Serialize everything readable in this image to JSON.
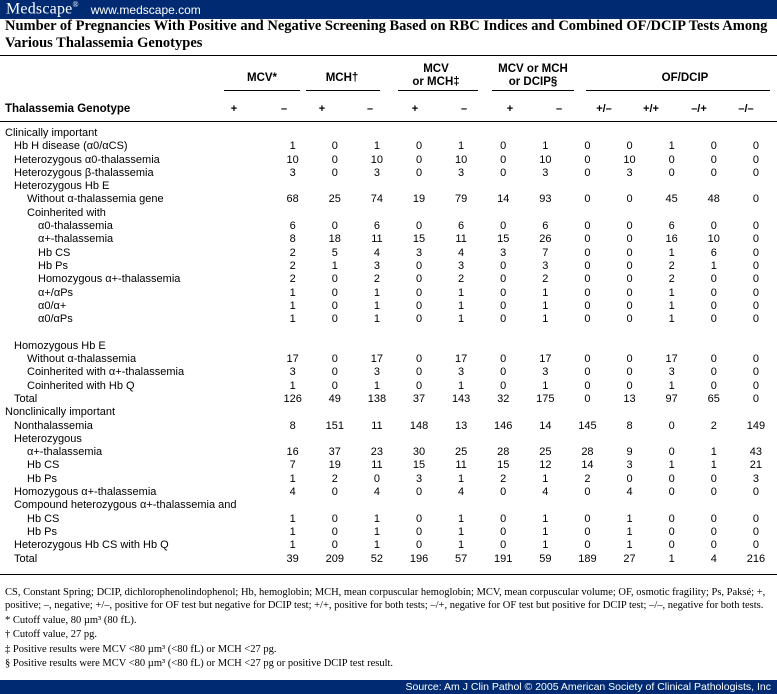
{
  "header": {
    "brand": "Medscape",
    "brand_mark": "®",
    "url": "www.medscape.com"
  },
  "title": "Number of Pregnancies With Positive and Negative Screening Based on RBC Indices and Combined OF/DCIP Tests Among Various Thalassemia Genotypes",
  "columns": {
    "genotype": "Thalassemia Genotype",
    "mcv": "MCV*",
    "mch": "MCH†",
    "mcv_or_mch_1": "MCV",
    "mcv_or_mch_2": "or MCH‡",
    "mcv_mch_dcip_1": "MCV or MCH",
    "mcv_mch_dcip_2": "or DCIP§",
    "ofdcip": "OF/DCIP",
    "sub": [
      "+",
      "–",
      "+",
      "–",
      "+",
      "–",
      "+",
      "–",
      "+/–",
      "+/+",
      "–/+",
      "–/–"
    ]
  },
  "rows": [
    {
      "label": "Clinically important",
      "indent": 1,
      "values": []
    },
    {
      "label": "Hb H disease (α0/αCS)",
      "indent": 2,
      "values": [
        "1",
        "0",
        "1",
        "0",
        "1",
        "0",
        "1",
        "0",
        "0",
        "1",
        "0",
        "0"
      ]
    },
    {
      "label": "Heterozygous α0-thalassemia",
      "indent": 2,
      "values": [
        "10",
        "0",
        "10",
        "0",
        "10",
        "0",
        "10",
        "0",
        "10",
        "0",
        "0",
        "0"
      ]
    },
    {
      "label": "Heterozygous β-thalassemia",
      "indent": 2,
      "values": [
        "3",
        "0",
        "3",
        "0",
        "3",
        "0",
        "3",
        "0",
        "3",
        "0",
        "0",
        "0"
      ]
    },
    {
      "label": "Heterozygous Hb E",
      "indent": 2,
      "values": []
    },
    {
      "label": "Without α-thalassemia gene",
      "indent": 3,
      "values": [
        "68",
        "25",
        "74",
        "19",
        "79",
        "14",
        "93",
        "0",
        "0",
        "45",
        "48",
        "0"
      ]
    },
    {
      "label": "Coinherited with",
      "indent": 3,
      "values": []
    },
    {
      "label": "α0-thalassemia",
      "indent": 4,
      "values": [
        "6",
        "0",
        "6",
        "0",
        "6",
        "0",
        "6",
        "0",
        "0",
        "6",
        "0",
        "0"
      ]
    },
    {
      "label": "α+-thalassemia",
      "indent": 4,
      "values": [
        "8",
        "18",
        "11",
        "15",
        "11",
        "15",
        "26",
        "0",
        "0",
        "16",
        "10",
        "0"
      ]
    },
    {
      "label": "Hb CS",
      "indent": 4,
      "values": [
        "2",
        "5",
        "4",
        "3",
        "4",
        "3",
        "7",
        "0",
        "0",
        "1",
        "6",
        "0"
      ]
    },
    {
      "label": "Hb Ps",
      "indent": 4,
      "values": [
        "2",
        "1",
        "3",
        "0",
        "3",
        "0",
        "3",
        "0",
        "0",
        "2",
        "1",
        "0"
      ]
    },
    {
      "label": "Homozygous α+-thalassemia",
      "indent": 4,
      "values": [
        "2",
        "0",
        "2",
        "0",
        "2",
        "0",
        "2",
        "0",
        "0",
        "2",
        "0",
        "0"
      ]
    },
    {
      "label": "α+/αPs",
      "indent": 4,
      "values": [
        "1",
        "0",
        "1",
        "0",
        "1",
        "0",
        "1",
        "0",
        "0",
        "1",
        "0",
        "0"
      ]
    },
    {
      "label": "α0/α+",
      "indent": 4,
      "values": [
        "1",
        "0",
        "1",
        "0",
        "1",
        "0",
        "1",
        "0",
        "0",
        "1",
        "0",
        "0"
      ]
    },
    {
      "label": "α0/αPs",
      "indent": 4,
      "values": [
        "1",
        "0",
        "1",
        "0",
        "1",
        "0",
        "1",
        "0",
        "0",
        "1",
        "0",
        "0"
      ]
    },
    {
      "label": "",
      "indent": 1,
      "values": []
    },
    {
      "label": "Homozygous Hb E",
      "indent": 2,
      "values": []
    },
    {
      "label": "Without α-thalassemia",
      "indent": 3,
      "values": [
        "17",
        "0",
        "17",
        "0",
        "17",
        "0",
        "17",
        "0",
        "0",
        "17",
        "0",
        "0"
      ]
    },
    {
      "label": "Coinherited with α+-thalassemia",
      "indent": 3,
      "values": [
        "3",
        "0",
        "3",
        "0",
        "3",
        "0",
        "3",
        "0",
        "0",
        "3",
        "0",
        "0"
      ]
    },
    {
      "label": "Coinherited with Hb Q",
      "indent": 3,
      "values": [
        "1",
        "0",
        "1",
        "0",
        "1",
        "0",
        "1",
        "0",
        "0",
        "1",
        "0",
        "0"
      ]
    },
    {
      "label": "Total",
      "indent": 2,
      "values": [
        "126",
        "49",
        "138",
        "37",
        "143",
        "32",
        "175",
        "0",
        "13",
        "97",
        "65",
        "0"
      ]
    },
    {
      "label": "Nonclinically important",
      "indent": 1,
      "values": []
    },
    {
      "label": "Nonthalassemia",
      "indent": 2,
      "values": [
        "8",
        "151",
        "11",
        "148",
        "13",
        "146",
        "14",
        "145",
        "8",
        "0",
        "2",
        "149"
      ]
    },
    {
      "label": "Heterozygous",
      "indent": 2,
      "values": []
    },
    {
      "label": "α+-thalassemia",
      "indent": 3,
      "values": [
        "16",
        "37",
        "23",
        "30",
        "25",
        "28",
        "25",
        "28",
        "9",
        "0",
        "1",
        "43"
      ]
    },
    {
      "label": "Hb CS",
      "indent": 3,
      "values": [
        "7",
        "19",
        "11",
        "15",
        "11",
        "15",
        "12",
        "14",
        "3",
        "1",
        "1",
        "21"
      ]
    },
    {
      "label": "Hb Ps",
      "indent": 3,
      "values": [
        "1",
        "2",
        "0",
        "3",
        "1",
        "2",
        "1",
        "2",
        "0",
        "0",
        "0",
        "3"
      ]
    },
    {
      "label": "Homozygous α+-thalassemia",
      "indent": 2,
      "values": [
        "4",
        "0",
        "4",
        "0",
        "4",
        "0",
        "4",
        "0",
        "4",
        "0",
        "0",
        "0"
      ]
    },
    {
      "label": "Compound heterozygous α+-thalassemia and",
      "indent": 2,
      "values": []
    },
    {
      "label": "Hb CS",
      "indent": 3,
      "values": [
        "1",
        "0",
        "1",
        "0",
        "1",
        "0",
        "1",
        "0",
        "1",
        "0",
        "0",
        "0"
      ]
    },
    {
      "label": "Hb Ps",
      "indent": 3,
      "values": [
        "1",
        "0",
        "1",
        "0",
        "1",
        "0",
        "1",
        "0",
        "1",
        "0",
        "0",
        "0"
      ]
    },
    {
      "label": "Heterozygous Hb CS with Hb Q",
      "indent": 2,
      "values": [
        "1",
        "0",
        "1",
        "0",
        "1",
        "0",
        "1",
        "0",
        "1",
        "0",
        "0",
        "0"
      ]
    },
    {
      "label": "Total",
      "indent": 2,
      "values": [
        "39",
        "209",
        "52",
        "196",
        "57",
        "191",
        "59",
        "189",
        "27",
        "1",
        "4",
        "216"
      ]
    }
  ],
  "footnotes": [
    "CS, Constant Spring; DCIP, dichlorophenolindophenol; Hb, hemoglobin; MCH, mean corpuscular hemoglobin; MCV, mean corpuscular volume; OF, osmotic fragility; Ps, Paksé; +, positive; –, negative; +/–, positive for OF test but negative for DCIP test; +/+, positive for both tests; –/+, negative for OF test but positive for DCIP test; –/–, negative for both tests.",
    "* Cutoff value, 80 µm³ (80 fL).",
    "† Cutoff value, 27 pg.",
    "‡ Positive results were MCV <80 µm³ (<80 fL) or MCH <27 pg.",
    "§ Positive results were MCV <80 µm³ (<80 fL) or MCH <27 pg or positive DCIP test result."
  ],
  "source": "Source: Am J Clin Pathol © 2005 American Society of Clinical Pathologists, Inc"
}
